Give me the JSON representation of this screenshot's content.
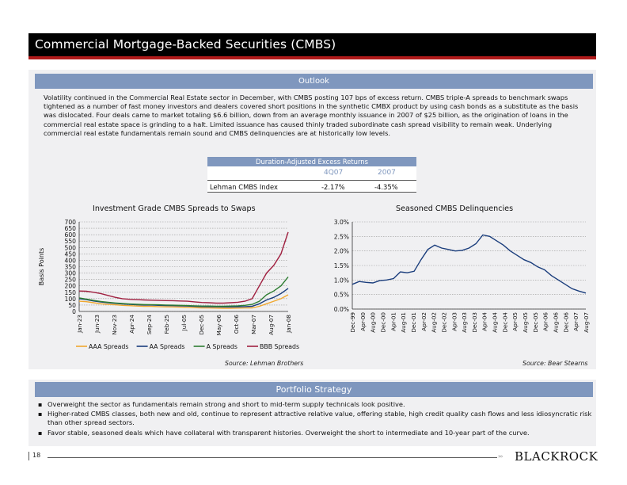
{
  "title": "Commercial Mortgage-Backed Securities (CMBS)",
  "outlook": {
    "header": "Outlook",
    "body": "Volatility continued in the Commercial Real Estate sector in December, with CMBS posting 107 bps of excess return. CMBS triple-A spreads to benchmark swaps tightened as a number of fast money investors and dealers covered short positions in the synthetic CMBX product by using cash bonds as a substitute as the basis was dislocated. Four deals came to market totaling $6.6 billion, down from an average monthly issuance in 2007 of $25 billion, as the origination of loans in the commercial real estate space is grinding to a halt. Limited issuance has caused thinly traded subordinate cash spread visibility to remain weak. Underlying commercial real estate fundamentals remain sound and CMBS delinquencies are at historically low levels."
  },
  "excess_returns_table": {
    "title": "Duration-Adjusted Excess Returns",
    "columns": [
      "4Q07",
      "2007"
    ],
    "rows": [
      {
        "label": "Lehman CMBS Index",
        "values": [
          "-2.17%",
          "-4.35%"
        ]
      }
    ]
  },
  "chart_data": [
    {
      "type": "line",
      "title": "Investment Grade CMBS Spreads to Swaps",
      "ylabel": "Basis Points",
      "ylim": [
        0,
        700
      ],
      "yticks": [
        "0",
        "50",
        "100",
        "150",
        "200",
        "250",
        "300",
        "350",
        "400",
        "450",
        "500",
        "550",
        "600",
        "650",
        "700"
      ],
      "xticks": [
        "Jan-23",
        "Jun-23",
        "Nov-23",
        "Apr-24",
        "Sep-24",
        "Feb-25",
        "Jul-05",
        "Dec-05",
        "May-06",
        "Oct-06",
        "Mar-07",
        "Aug-07",
        "Jan-08"
      ],
      "legend": "bottom",
      "grid": true,
      "series": [
        {
          "name": "AAA Spreads",
          "color": "#f0a830",
          "values": [
            80,
            76,
            68,
            60,
            55,
            52,
            48,
            45,
            42,
            40,
            40,
            38,
            36,
            35,
            34,
            32,
            30,
            28,
            27,
            26,
            25,
            25,
            26,
            27,
            28,
            40,
            60,
            80,
            100,
            130
          ]
        },
        {
          "name": "AA Spreads",
          "color": "#1a3d7c",
          "values": [
            100,
            92,
            82,
            74,
            68,
            63,
            58,
            55,
            52,
            50,
            50,
            48,
            46,
            45,
            44,
            42,
            40,
            38,
            37,
            36,
            35,
            35,
            36,
            38,
            40,
            60,
            90,
            110,
            140,
            180
          ]
        },
        {
          "name": "A Spreads",
          "color": "#2e7d32",
          "values": [
            105,
            96,
            86,
            78,
            72,
            66,
            62,
            58,
            56,
            54,
            53,
            52,
            50,
            49,
            48,
            46,
            44,
            42,
            42,
            40,
            40,
            42,
            44,
            48,
            55,
            80,
            130,
            160,
            200,
            270
          ]
        },
        {
          "name": "BBB Spreads",
          "color": "#a02040",
          "values": [
            160,
            158,
            150,
            140,
            125,
            110,
            100,
            95,
            92,
            90,
            88,
            86,
            85,
            84,
            82,
            80,
            75,
            70,
            68,
            65,
            65,
            68,
            72,
            80,
            100,
            200,
            300,
            360,
            450,
            620
          ]
        }
      ]
    },
    {
      "type": "line",
      "title": "Seasoned CMBS Delinquencies",
      "ylim": [
        0,
        3.0
      ],
      "yticks": [
        "0.0%",
        "0.5%",
        "1.0%",
        "1.5%",
        "2.0%",
        "2.5%",
        "3.0%"
      ],
      "xticks": [
        "Dec-99",
        "Apr-00",
        "Aug-00",
        "Dec-00",
        "Apr-01",
        "Aug-01",
        "Dec-01",
        "Apr-02",
        "Aug-02",
        "Dec-02",
        "Apr-03",
        "Aug-03",
        "Dec-03",
        "Apr-04",
        "Aug-04",
        "Dec-04",
        "Apr-05",
        "Aug-05",
        "Dec-05",
        "Apr-06",
        "Aug-06",
        "Dec-06",
        "Apr-07",
        "Aug-07"
      ],
      "grid": true,
      "series": [
        {
          "name": "",
          "color": "#1a3d7c",
          "values": [
            0.85,
            0.95,
            0.92,
            0.9,
            0.98,
            1.0,
            1.05,
            1.28,
            1.25,
            1.3,
            1.7,
            2.05,
            2.2,
            2.1,
            2.05,
            2.0,
            2.02,
            2.1,
            2.25,
            2.55,
            2.5,
            2.35,
            2.2,
            2.0,
            1.85,
            1.7,
            1.6,
            1.45,
            1.35,
            1.15,
            1.0,
            0.85,
            0.7,
            0.62,
            0.55
          ]
        }
      ]
    }
  ],
  "sources": {
    "left": "Source: Lehman Brothers",
    "right": "Source: Bear Stearns"
  },
  "strategy": {
    "header": "Portfolio Strategy",
    "bullets": [
      "Overweight the sector as fundamentals remain strong and short to mid-term supply technicals look positive.",
      "Higher-rated CMBS classes, both new and old, continue to represent attractive relative value, offering stable, high credit quality cash flows and less idiosyncratic risk than other spread sectors.",
      "Favor stable, seasoned deals which have collateral with transparent histories. Overweight the short to intermediate and 10-year part of the curve."
    ]
  },
  "footer": {
    "page_number": "18",
    "logo": "BLACKROCK"
  }
}
